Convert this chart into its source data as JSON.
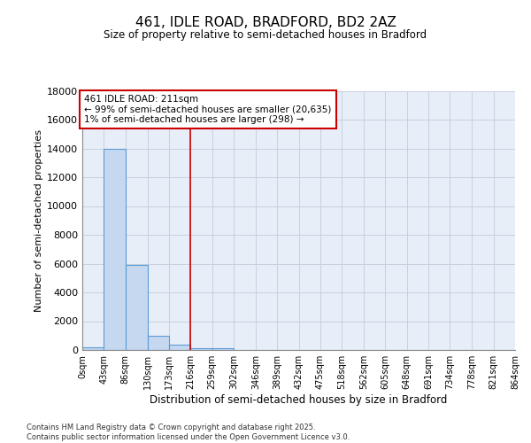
{
  "title1": "461, IDLE ROAD, BRADFORD, BD2 2AZ",
  "title2": "Size of property relative to semi-detached houses in Bradford",
  "xlabel": "Distribution of semi-detached houses by size in Bradford",
  "ylabel": "Number of semi-detached properties",
  "annotation_line1": "461 IDLE ROAD: 211sqm",
  "annotation_line2": "← 99% of semi-detached houses are smaller (20,635)",
  "annotation_line3": "1% of semi-detached houses are larger (298) →",
  "footer1": "Contains HM Land Registry data © Crown copyright and database right 2025.",
  "footer2": "Contains public sector information licensed under the Open Government Licence v3.0.",
  "bar_edges": [
    0,
    43,
    86,
    130,
    173,
    216,
    259,
    302,
    346,
    389,
    432,
    475,
    518,
    562,
    605,
    648,
    691,
    734,
    778,
    821,
    864
  ],
  "bar_heights": [
    200,
    14000,
    5900,
    1000,
    350,
    150,
    100,
    0,
    0,
    0,
    0,
    0,
    0,
    0,
    0,
    0,
    0,
    0,
    0,
    0
  ],
  "bar_color": "#c5d8f0",
  "bar_edge_color": "#5b9bd5",
  "grid_color": "#c8d0e0",
  "vline_x": 216,
  "vline_color": "#cc0000",
  "ylim": [
    0,
    18000
  ],
  "yticks": [
    0,
    2000,
    4000,
    6000,
    8000,
    10000,
    12000,
    14000,
    16000,
    18000
  ],
  "background_color": "#e8eef8",
  "annotation_box_color": "white",
  "annotation_box_edge": "#cc0000"
}
